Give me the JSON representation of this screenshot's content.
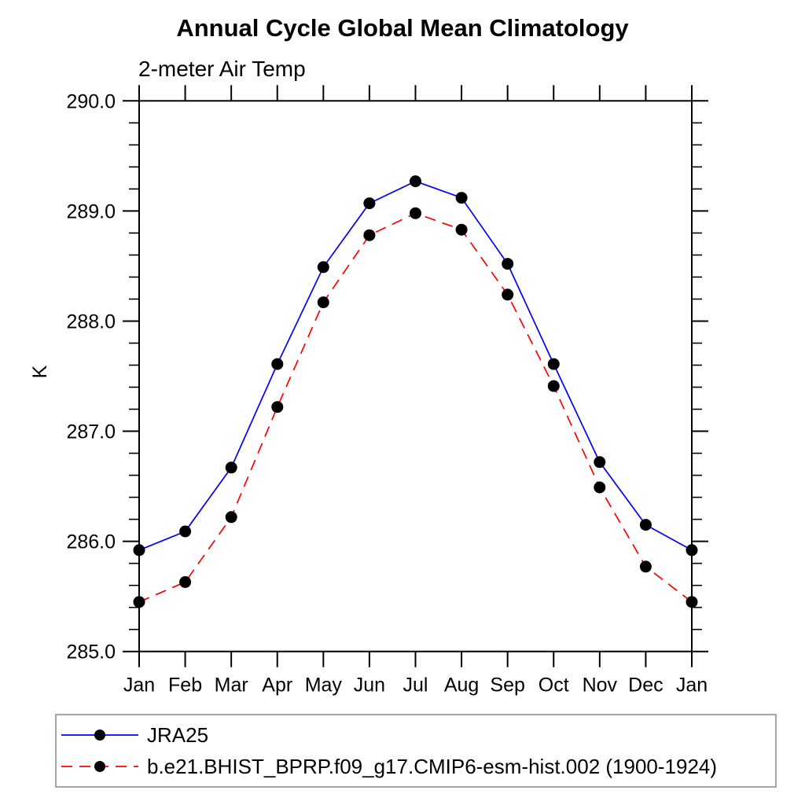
{
  "chart": {
    "title": "Annual Cycle Global Mean Climatology",
    "subtitle": "2-meter Air Temp",
    "ylabel": "K"
  },
  "legend": {
    "items": [
      {
        "label": "JRA25",
        "color": "#0000ff",
        "style": "solid",
        "marker": "circle"
      },
      {
        "label": "b.e21.BHIST_BPRP.f09_g17.CMIP6-esm-hist.002 (1900-1924)",
        "color": "#ff0000",
        "style": "dashed",
        "marker": "circle"
      }
    ],
    "position": "bottom-left",
    "border_color": "#a6a6a6"
  },
  "colors": {
    "axis": "#000000",
    "marker": "#000000",
    "jra25_line": "#0000ff",
    "model_line": "#ff0000"
  },
  "chart_data": {
    "type": "line",
    "title": "Annual Cycle Global Mean Climatology",
    "subtitle": "2-meter Air Temp",
    "xlabel": "",
    "ylabel": "K",
    "categories": [
      "Jan",
      "Feb",
      "Mar",
      "Apr",
      "May",
      "Jun",
      "Jul",
      "Aug",
      "Sep",
      "Oct",
      "Nov",
      "Dec",
      "Jan"
    ],
    "ylim": [
      285.0,
      290.0
    ],
    "ytick_interval": 1.0,
    "yminor_interval": 0.2,
    "ytick_labels": [
      "285.0",
      "286.0",
      "287.0",
      "288.0",
      "289.0",
      "290.0"
    ],
    "grid": false,
    "legend_position": "bottom-left-box",
    "series": [
      {
        "name": "JRA25",
        "color": "#0000ff",
        "style": "solid",
        "marker": "circle",
        "values": [
          285.92,
          286.09,
          286.67,
          287.61,
          288.49,
          289.07,
          289.27,
          289.12,
          288.52,
          287.61,
          286.72,
          286.15,
          285.92
        ]
      },
      {
        "name": "b.e21.BHIST_BPRP.f09_g17.CMIP6-esm-hist.002 (1900-1924)",
        "color": "#ff0000",
        "style": "dashed",
        "marker": "circle",
        "values": [
          285.45,
          285.63,
          286.22,
          287.22,
          288.17,
          288.78,
          288.98,
          288.83,
          288.24,
          287.41,
          286.49,
          285.77,
          285.45
        ]
      }
    ]
  }
}
